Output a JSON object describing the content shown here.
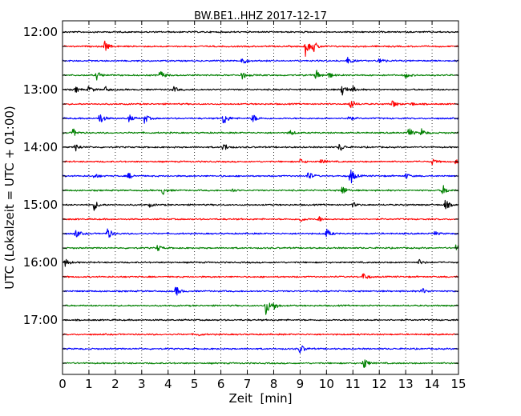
{
  "chart_data": {
    "type": "line",
    "title": "BW.BE1..HHZ 2017-12-17",
    "xlabel": "Zeit  [min]",
    "ylabel": "UTC (Lokalzeit = UTC + 01:00)",
    "xlim": [
      0,
      15
    ],
    "x_ticks": [
      "0",
      "1",
      "2",
      "3",
      "4",
      "5",
      "6",
      "7",
      "8",
      "9",
      "10",
      "11",
      "12",
      "13",
      "14",
      "15"
    ],
    "y_tick_labels": [
      {
        "label": "12:00",
        "row": 0
      },
      {
        "label": "13:00",
        "row": 4
      },
      {
        "label": "14:00",
        "row": 8
      },
      {
        "label": "15:00",
        "row": 12
      },
      {
        "label": "16:00",
        "row": 16
      },
      {
        "label": "17:00",
        "row": 20
      }
    ],
    "grid": "x-dotted",
    "colors": [
      "#000000",
      "#ff0000",
      "#0000ff",
      "#008000"
    ],
    "traces": [
      {
        "start": "12:00",
        "color": "#000000",
        "events": []
      },
      {
        "start": "12:15",
        "color": "#ff0000",
        "events": [
          [
            1.6,
            0.55
          ],
          [
            9.2,
            1.0
          ],
          [
            9.5,
            0.6
          ]
        ]
      },
      {
        "start": "12:30",
        "color": "#0000ff",
        "events": [
          [
            6.8,
            0.5
          ],
          [
            10.8,
            0.35
          ],
          [
            12.0,
            0.4
          ]
        ]
      },
      {
        "start": "12:45",
        "color": "#008000",
        "events": [
          [
            1.3,
            0.45
          ],
          [
            3.7,
            0.55
          ],
          [
            6.8,
            0.45
          ],
          [
            9.6,
            0.6
          ],
          [
            10.1,
            0.3
          ],
          [
            13.0,
            0.3
          ]
        ]
      },
      {
        "start": "13:00",
        "color": "#000000",
        "events": [
          [
            0.5,
            0.3
          ],
          [
            1.0,
            0.4
          ],
          [
            1.6,
            0.35
          ],
          [
            4.2,
            0.3
          ],
          [
            10.6,
            0.7
          ],
          [
            11.0,
            0.3
          ]
        ]
      },
      {
        "start": "13:15",
        "color": "#ff0000",
        "events": [
          [
            10.9,
            0.6
          ],
          [
            12.5,
            0.45
          ],
          [
            13.2,
            0.2
          ]
        ]
      },
      {
        "start": "13:30",
        "color": "#0000ff",
        "events": [
          [
            1.4,
            0.7
          ],
          [
            2.5,
            0.45
          ],
          [
            3.1,
            0.55
          ],
          [
            6.1,
            0.8
          ],
          [
            7.2,
            0.5
          ],
          [
            10.8,
            0.4
          ]
        ]
      },
      {
        "start": "13:45",
        "color": "#008000",
        "events": [
          [
            0.4,
            0.45
          ],
          [
            8.6,
            0.35
          ],
          [
            13.1,
            0.6
          ],
          [
            13.6,
            0.4
          ]
        ]
      },
      {
        "start": "14:00",
        "color": "#000000",
        "events": [
          [
            0.5,
            0.4
          ],
          [
            6.1,
            0.5
          ],
          [
            10.5,
            0.5
          ]
        ]
      },
      {
        "start": "14:15",
        "color": "#ff0000",
        "events": [
          [
            9.0,
            0.3
          ],
          [
            9.8,
            0.3
          ],
          [
            14.0,
            0.3
          ],
          [
            14.9,
            0.3
          ]
        ]
      },
      {
        "start": "14:30",
        "color": "#0000ff",
        "events": [
          [
            1.2,
            0.3
          ],
          [
            2.5,
            0.35
          ],
          [
            9.3,
            0.55
          ],
          [
            10.9,
            1.0
          ],
          [
            13.0,
            0.3
          ]
        ]
      },
      {
        "start": "14:45",
        "color": "#008000",
        "events": [
          [
            3.8,
            0.45
          ],
          [
            6.4,
            0.2
          ],
          [
            10.6,
            0.55
          ],
          [
            14.4,
            0.6
          ]
        ]
      },
      {
        "start": "15:00",
        "color": "#000000",
        "events": [
          [
            1.2,
            0.55
          ],
          [
            3.3,
            0.2
          ],
          [
            11.0,
            0.25
          ],
          [
            14.5,
            0.55
          ]
        ]
      },
      {
        "start": "15:15",
        "color": "#ff0000",
        "events": [
          [
            9.0,
            0.3
          ],
          [
            9.7,
            0.3
          ]
        ]
      },
      {
        "start": "15:30",
        "color": "#0000ff",
        "events": [
          [
            0.5,
            0.45
          ],
          [
            1.7,
            0.7
          ],
          [
            10.0,
            0.5
          ],
          [
            14.1,
            0.2
          ]
        ]
      },
      {
        "start": "15:45",
        "color": "#008000",
        "events": [
          [
            3.6,
            0.35
          ],
          [
            14.9,
            0.3
          ]
        ]
      },
      {
        "start": "16:00",
        "color": "#000000",
        "events": [
          [
            0.1,
            0.45
          ],
          [
            13.5,
            0.3
          ]
        ]
      },
      {
        "start": "16:15",
        "color": "#ff0000",
        "events": [
          [
            11.4,
            0.45
          ]
        ]
      },
      {
        "start": "16:30",
        "color": "#0000ff",
        "events": [
          [
            4.3,
            0.55
          ],
          [
            13.6,
            0.4
          ]
        ]
      },
      {
        "start": "16:45",
        "color": "#008000",
        "events": [
          [
            7.7,
            1.0
          ],
          [
            8.0,
            0.4
          ]
        ]
      },
      {
        "start": "17:00",
        "color": "#000000",
        "events": []
      },
      {
        "start": "17:15",
        "color": "#ff0000",
        "events": [
          [
            5.1,
            0.2
          ]
        ]
      },
      {
        "start": "17:30",
        "color": "#0000ff",
        "events": [
          [
            9.0,
            0.55
          ]
        ]
      },
      {
        "start": "17:45",
        "color": "#008000",
        "events": [
          [
            11.4,
            0.7
          ]
        ]
      }
    ]
  }
}
